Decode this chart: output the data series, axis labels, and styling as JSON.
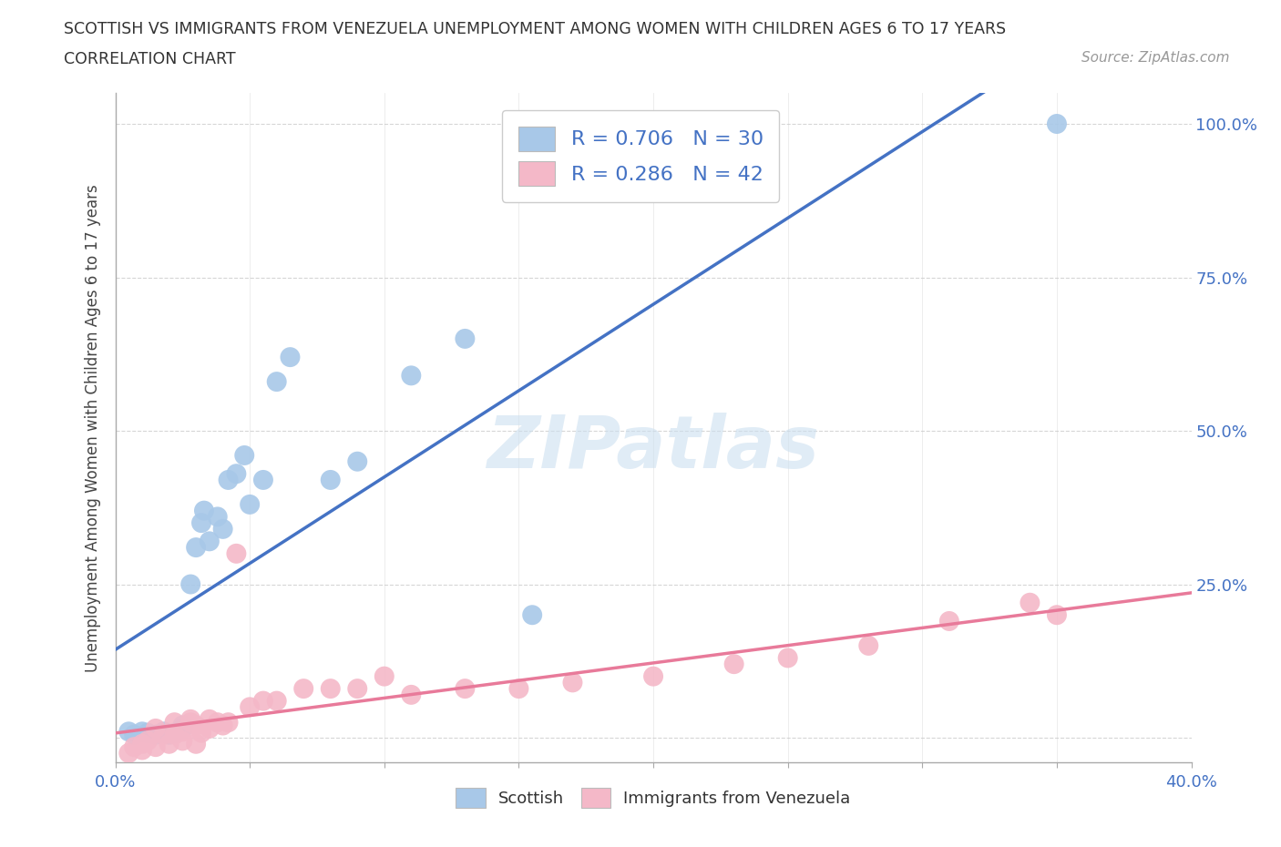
{
  "title": "SCOTTISH VS IMMIGRANTS FROM VENEZUELA UNEMPLOYMENT AMONG WOMEN WITH CHILDREN AGES 6 TO 17 YEARS",
  "subtitle": "CORRELATION CHART",
  "source": "Source: ZipAtlas.com",
  "ylabel_label": "Unemployment Among Women with Children Ages 6 to 17 years",
  "x_min": 0.0,
  "x_max": 0.4,
  "y_min": -0.04,
  "y_max": 1.05,
  "x_ticks": [
    0.0,
    0.05,
    0.1,
    0.15,
    0.2,
    0.25,
    0.3,
    0.35,
    0.4
  ],
  "y_ticks": [
    0.0,
    0.25,
    0.5,
    0.75,
    1.0
  ],
  "y_tick_labels_right": [
    "",
    "25.0%",
    "50.0%",
    "75.0%",
    "100.0%"
  ],
  "scottish_color": "#a8c8e8",
  "venezuela_color": "#f4b8c8",
  "scottish_line_color": "#4472c4",
  "venezuela_line_color": "#e87a9a",
  "legend_text_1": "R = 0.706   N = 30",
  "legend_text_2": "R = 0.286   N = 42",
  "watermark": "ZIPatlas",
  "scottish_x": [
    0.005,
    0.007,
    0.01,
    0.012,
    0.015,
    0.018,
    0.02,
    0.022,
    0.025,
    0.025,
    0.028,
    0.03,
    0.032,
    0.033,
    0.035,
    0.038,
    0.04,
    0.042,
    0.045,
    0.048,
    0.05,
    0.055,
    0.06,
    0.065,
    0.08,
    0.09,
    0.11,
    0.13,
    0.155,
    0.35
  ],
  "scottish_y": [
    0.01,
    0.005,
    0.01,
    0.008,
    0.005,
    0.01,
    0.005,
    0.008,
    0.015,
    0.02,
    0.25,
    0.31,
    0.35,
    0.37,
    0.32,
    0.36,
    0.34,
    0.42,
    0.43,
    0.46,
    0.38,
    0.42,
    0.58,
    0.62,
    0.42,
    0.45,
    0.59,
    0.65,
    0.2,
    1.0
  ],
  "venezuela_x": [
    0.005,
    0.007,
    0.01,
    0.01,
    0.012,
    0.015,
    0.015,
    0.018,
    0.02,
    0.022,
    0.022,
    0.025,
    0.025,
    0.028,
    0.028,
    0.03,
    0.03,
    0.032,
    0.035,
    0.035,
    0.038,
    0.04,
    0.042,
    0.045,
    0.05,
    0.055,
    0.06,
    0.07,
    0.08,
    0.09,
    0.1,
    0.11,
    0.13,
    0.15,
    0.17,
    0.2,
    0.23,
    0.25,
    0.28,
    0.31,
    0.34,
    0.35
  ],
  "venezuela_y": [
    -0.025,
    -0.015,
    -0.02,
    -0.01,
    -0.005,
    -0.015,
    0.015,
    0.005,
    -0.01,
    0.005,
    0.025,
    -0.005,
    0.01,
    0.025,
    0.03,
    -0.01,
    0.02,
    0.008,
    0.015,
    0.03,
    0.025,
    0.02,
    0.025,
    0.3,
    0.05,
    0.06,
    0.06,
    0.08,
    0.08,
    0.08,
    0.1,
    0.07,
    0.08,
    0.08,
    0.09,
    0.1,
    0.12,
    0.13,
    0.15,
    0.19,
    0.22,
    0.2
  ]
}
